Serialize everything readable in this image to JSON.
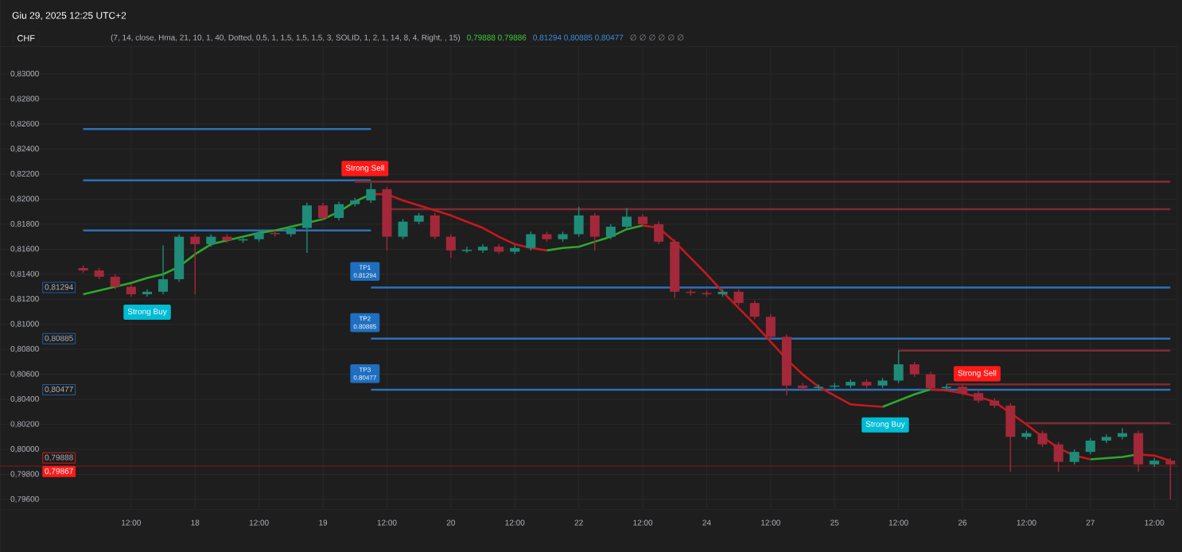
{
  "chart_data": {
    "type": "candlestick",
    "title": "Giu 29, 2025 12:25 UTC+2",
    "subtitle": "(7, 14, close, Hma, 21, 10, 1, 40, Dotted, 0,5, 1, 1,5, 1,5, 1,5, 3, SOLID, 1, 2, 1, 14, 8, 4, Right, , 15)",
    "categories": [
      null,
      null,
      null,
      "12:00",
      null,
      null,
      null,
      "18",
      null,
      null,
      null,
      "12:00",
      null,
      null,
      null,
      "19",
      null,
      null,
      null,
      "12:00",
      null,
      null,
      null,
      "20",
      null,
      null,
      null,
      "12:00",
      null,
      null,
      null,
      "22",
      null,
      null,
      null,
      "12:00",
      null,
      null,
      null,
      "24",
      null,
      null,
      null,
      "12:00",
      null,
      null,
      null,
      "25",
      null,
      null,
      null,
      "12:00",
      null,
      null,
      null,
      "26",
      null,
      null,
      null,
      "12:00",
      null,
      null,
      null,
      "27",
      null,
      null,
      null,
      "12:00",
      null
    ],
    "ohlc": [
      [
        0.8145,
        0.8147,
        0.8141,
        0.8143
      ],
      [
        0.8143,
        0.8145,
        0.8136,
        0.8138
      ],
      [
        0.8138,
        0.814,
        0.8128,
        0.813
      ],
      [
        0.813,
        0.8132,
        0.8122,
        0.8124
      ],
      [
        0.8124,
        0.8128,
        0.8122,
        0.8126
      ],
      [
        0.8126,
        0.8163,
        0.8124,
        0.8136
      ],
      [
        0.8136,
        0.8172,
        0.8134,
        0.817
      ],
      [
        0.817,
        0.8172,
        0.8124,
        0.8164
      ],
      [
        0.8164,
        0.8172,
        0.8162,
        0.817
      ],
      [
        0.817,
        0.8172,
        0.8165,
        0.8167
      ],
      [
        0.8167,
        0.817,
        0.8165,
        0.8168
      ],
      [
        0.8168,
        0.8175,
        0.8166,
        0.8173
      ],
      [
        0.8173,
        0.8175,
        0.817,
        0.8172
      ],
      [
        0.8172,
        0.8179,
        0.817,
        0.8177
      ],
      [
        0.8177,
        0.8197,
        0.8157,
        0.8195
      ],
      [
        0.8195,
        0.8197,
        0.8183,
        0.8185
      ],
      [
        0.8185,
        0.8198,
        0.8183,
        0.8196
      ],
      [
        0.8196,
        0.8201,
        0.8194,
        0.8199
      ],
      [
        0.8199,
        0.8213,
        0.8197,
        0.8208
      ],
      [
        0.8208,
        0.821,
        0.8159,
        0.817
      ],
      [
        0.817,
        0.8184,
        0.8168,
        0.8182
      ],
      [
        0.8182,
        0.8189,
        0.818,
        0.8187
      ],
      [
        0.8187,
        0.8189,
        0.8168,
        0.817
      ],
      [
        0.817,
        0.8172,
        0.8153,
        0.8159
      ],
      [
        0.8159,
        0.8162,
        0.8157,
        0.8159
      ],
      [
        0.8159,
        0.8164,
        0.8157,
        0.8162
      ],
      [
        0.8162,
        0.8164,
        0.8156,
        0.8158
      ],
      [
        0.8158,
        0.8163,
        0.8156,
        0.8161
      ],
      [
        0.8161,
        0.8174,
        0.8159,
        0.8172
      ],
      [
        0.8172,
        0.8174,
        0.8166,
        0.8168
      ],
      [
        0.8168,
        0.8174,
        0.8166,
        0.8172
      ],
      [
        0.8172,
        0.8194,
        0.817,
        0.8187
      ],
      [
        0.8187,
        0.8189,
        0.8159,
        0.817
      ],
      [
        0.817,
        0.818,
        0.8168,
        0.8178
      ],
      [
        0.8178,
        0.8193,
        0.8176,
        0.8186
      ],
      [
        0.8186,
        0.8188,
        0.8178,
        0.818
      ],
      [
        0.818,
        0.8182,
        0.8164,
        0.8166
      ],
      [
        0.8166,
        0.8168,
        0.8121,
        0.8126
      ],
      [
        0.8126,
        0.8128,
        0.8123,
        0.8125
      ],
      [
        0.8125,
        0.8127,
        0.8122,
        0.8124
      ],
      [
        0.8124,
        0.8128,
        0.8122,
        0.8126
      ],
      [
        0.8126,
        0.8128,
        0.8115,
        0.8117
      ],
      [
        0.8117,
        0.8119,
        0.8104,
        0.8106
      ],
      [
        0.8106,
        0.8108,
        0.8088,
        0.809
      ],
      [
        0.809,
        0.8092,
        0.8043,
        0.8051
      ],
      [
        0.8051,
        0.8053,
        0.8047,
        0.8049
      ],
      [
        0.8049,
        0.8052,
        0.8047,
        0.805
      ],
      [
        0.805,
        0.8053,
        0.8048,
        0.8051
      ],
      [
        0.8051,
        0.8056,
        0.8049,
        0.8054
      ],
      [
        0.8054,
        0.8056,
        0.8049,
        0.8051
      ],
      [
        0.8051,
        0.8057,
        0.8049,
        0.8055
      ],
      [
        0.8055,
        0.8079,
        0.8053,
        0.8068
      ],
      [
        0.8068,
        0.807,
        0.8058,
        0.806
      ],
      [
        0.806,
        0.8062,
        0.8047,
        0.8049
      ],
      [
        0.8049,
        0.8052,
        0.8047,
        0.805
      ],
      [
        0.805,
        0.8052,
        0.8043,
        0.8045
      ],
      [
        0.8045,
        0.8047,
        0.8037,
        0.8039
      ],
      [
        0.8039,
        0.8041,
        0.8033,
        0.8035
      ],
      [
        0.8035,
        0.8037,
        0.7982,
        0.801
      ],
      [
        0.801,
        0.8015,
        0.8008,
        0.8013
      ],
      [
        0.8013,
        0.8015,
        0.8002,
        0.8004
      ],
      [
        0.8004,
        0.8006,
        0.7982,
        0.799
      ],
      [
        0.799,
        0.8,
        0.7988,
        0.7998
      ],
      [
        0.7998,
        0.8009,
        0.7996,
        0.8007
      ],
      [
        0.8007,
        0.8012,
        0.8005,
        0.801
      ],
      [
        0.801,
        0.8017,
        0.8008,
        0.8013
      ],
      [
        0.8013,
        0.8015,
        0.7982,
        0.7988
      ],
      [
        0.7988,
        0.7993,
        0.7986,
        0.7991
      ],
      [
        0.7991,
        0.7993,
        0.796,
        0.7988
      ]
    ],
    "series": [
      {
        "type": "line",
        "color": "#2f6fb8",
        "values": [
          0.8256,
          0.8256,
          0.8256,
          0.8256,
          0.8256,
          0.8256,
          0.8256,
          0.8256,
          0.8256,
          0.8256,
          0.8256,
          0.8256,
          0.8256,
          0.8256,
          0.8256,
          0.8256,
          0.8256,
          0.8256,
          0.8256,
          null,
          null,
          null,
          null,
          null,
          null,
          null,
          null,
          null,
          null,
          null,
          null,
          null,
          null,
          null,
          null,
          null,
          null,
          null,
          null,
          null,
          null,
          null,
          null,
          null,
          null,
          null,
          null,
          null,
          null,
          null,
          null,
          null,
          null,
          null,
          null,
          null,
          null,
          null,
          null,
          null,
          null,
          null,
          null,
          null,
          null,
          null,
          null,
          null,
          null
        ]
      },
      {
        "type": "line",
        "color": "#2f6fb8",
        "values": [
          0.8215,
          0.8215,
          0.8215,
          0.8215,
          0.8215,
          0.8215,
          0.8215,
          0.8215,
          0.8215,
          0.8215,
          0.8215,
          0.8215,
          0.8215,
          0.8215,
          0.8215,
          0.8215,
          0.8215,
          0.8215,
          0.8215,
          null,
          null,
          null,
          null,
          null,
          null,
          null,
          null,
          null,
          null,
          null,
          null,
          null,
          null,
          null,
          null,
          null,
          null,
          null,
          null,
          null,
          null,
          null,
          null,
          null,
          null,
          null,
          null,
          null,
          null,
          null,
          null,
          null,
          null,
          null,
          null,
          null,
          null,
          null,
          null,
          null,
          null,
          null,
          null,
          null,
          null,
          null,
          null,
          null,
          null
        ]
      },
      {
        "type": "line",
        "color": "#2f6fb8",
        "values": [
          0.8175,
          0.8175,
          0.8175,
          0.8175,
          0.8175,
          0.8175,
          0.8175,
          0.8175,
          0.8175,
          0.8175,
          0.8175,
          0.8175,
          0.8175,
          0.8175,
          0.8175,
          0.8175,
          0.8175,
          0.8175,
          0.8175,
          null,
          null,
          null,
          null,
          null,
          null,
          null,
          null,
          null,
          null,
          null,
          null,
          null,
          null,
          null,
          null,
          null,
          null,
          null,
          null,
          null,
          null,
          null,
          null,
          null,
          null,
          null,
          null,
          null,
          null,
          null,
          null,
          null,
          null,
          null,
          null,
          null,
          null,
          null,
          null,
          null,
          null,
          null,
          null,
          null,
          null,
          null,
          null,
          null,
          null
        ]
      },
      {
        "type": "line",
        "color": "#2f6fb8",
        "values": [
          null,
          null,
          null,
          null,
          null,
          null,
          null,
          null,
          null,
          null,
          null,
          null,
          null,
          null,
          null,
          null,
          null,
          null,
          0.81294,
          0.81294,
          0.81294,
          0.81294,
          0.81294,
          0.81294,
          0.81294,
          0.81294,
          0.81294,
          0.81294,
          0.81294,
          0.81294,
          0.81294,
          0.81294,
          0.81294,
          0.81294,
          0.81294,
          0.81294,
          0.81294,
          0.81294,
          0.81294,
          0.81294,
          0.81294,
          0.81294,
          0.81294,
          0.81294,
          0.81294,
          0.81294,
          0.81294,
          0.81294,
          0.81294,
          0.81294,
          0.81294,
          0.81294,
          0.81294,
          0.81294,
          0.81294,
          0.81294,
          0.81294,
          0.81294,
          0.81294,
          0.81294,
          0.81294,
          0.81294,
          0.81294,
          0.81294,
          0.81294,
          0.81294,
          0.81294,
          0.81294,
          0.81294
        ]
      },
      {
        "type": "line",
        "color": "#2f6fb8",
        "values": [
          null,
          null,
          null,
          null,
          null,
          null,
          null,
          null,
          null,
          null,
          null,
          null,
          null,
          null,
          null,
          null,
          null,
          null,
          0.80885,
          0.80885,
          0.80885,
          0.80885,
          0.80885,
          0.80885,
          0.80885,
          0.80885,
          0.80885,
          0.80885,
          0.80885,
          0.80885,
          0.80885,
          0.80885,
          0.80885,
          0.80885,
          0.80885,
          0.80885,
          0.80885,
          0.80885,
          0.80885,
          0.80885,
          0.80885,
          0.80885,
          0.80885,
          0.80885,
          0.80885,
          0.80885,
          0.80885,
          0.80885,
          0.80885,
          0.80885,
          0.80885,
          0.80885,
          0.80885,
          0.80885,
          0.80885,
          0.80885,
          0.80885,
          0.80885,
          0.80885,
          0.80885,
          0.80885,
          0.80885,
          0.80885,
          0.80885,
          0.80885,
          0.80885,
          0.80885,
          0.80885,
          0.80885
        ]
      },
      {
        "type": "line",
        "color": "#2f6fb8",
        "values": [
          null,
          null,
          null,
          null,
          null,
          null,
          null,
          null,
          null,
          null,
          null,
          null,
          null,
          null,
          null,
          null,
          null,
          null,
          0.80477,
          0.80477,
          0.80477,
          0.80477,
          0.80477,
          0.80477,
          0.80477,
          0.80477,
          0.80477,
          0.80477,
          0.80477,
          0.80477,
          0.80477,
          0.80477,
          0.80477,
          0.80477,
          0.80477,
          0.80477,
          0.80477,
          0.80477,
          0.80477,
          0.80477,
          0.80477,
          0.80477,
          0.80477,
          0.80477,
          0.80477,
          0.80477,
          0.80477,
          0.80477,
          0.80477,
          0.80477,
          0.80477,
          0.80477,
          0.80477,
          0.80477,
          0.80477,
          0.80477,
          0.80477,
          0.80477,
          0.80477,
          0.80477,
          0.80477,
          0.80477,
          0.80477,
          0.80477,
          0.80477,
          0.80477,
          0.80477,
          0.80477,
          0.80477
        ]
      },
      {
        "type": "line",
        "color": "#7d2b33",
        "values": [
          null,
          null,
          null,
          null,
          null,
          null,
          null,
          null,
          null,
          null,
          null,
          null,
          null,
          null,
          null,
          null,
          null,
          0.8214,
          0.8214,
          0.8214,
          0.8214,
          0.8214,
          0.8214,
          0.8214,
          0.8214,
          0.8214,
          0.8214,
          0.8214,
          0.8214,
          0.8214,
          0.8214,
          0.8214,
          0.8214,
          0.8214,
          0.8214,
          0.8214,
          0.8214,
          0.8214,
          0.8214,
          0.8214,
          0.8214,
          0.8214,
          0.8214,
          0.8214,
          0.8214,
          0.8214,
          0.8214,
          0.8214,
          0.8214,
          0.8214,
          0.8214,
          0.8214,
          0.8214,
          0.8214,
          0.8214,
          0.8214,
          0.8214,
          0.8214,
          0.8214,
          0.8214,
          0.8214,
          0.8214,
          0.8214,
          0.8214,
          0.8214,
          0.8214,
          0.8214,
          0.8214,
          0.8214
        ]
      },
      {
        "type": "line",
        "color": "#7d2b33",
        "values": [
          null,
          null,
          null,
          null,
          null,
          null,
          null,
          null,
          null,
          null,
          null,
          null,
          null,
          null,
          null,
          null,
          null,
          null,
          null,
          0.8192,
          0.8192,
          0.8192,
          0.8192,
          0.8192,
          0.8192,
          0.8192,
          0.8192,
          0.8192,
          0.8192,
          0.8192,
          0.8192,
          0.8192,
          0.8192,
          0.8192,
          0.8192,
          0.8192,
          0.8192,
          0.8192,
          0.8192,
          0.8192,
          0.8192,
          0.8192,
          0.8192,
          0.8192,
          0.8192,
          0.8192,
          0.8192,
          0.8192,
          0.8192,
          0.8192,
          0.8192,
          0.8192,
          0.8192,
          0.8192,
          0.8192,
          0.8192,
          0.8192,
          0.8192,
          0.8192,
          0.8192,
          0.8192,
          0.8192,
          0.8192,
          0.8192,
          0.8192,
          0.8192,
          0.8192,
          0.8192,
          0.8192
        ]
      },
      {
        "type": "line",
        "color": "#7d2b33",
        "values": [
          null,
          null,
          null,
          null,
          null,
          null,
          null,
          null,
          null,
          null,
          null,
          null,
          null,
          null,
          null,
          null,
          null,
          null,
          null,
          null,
          null,
          null,
          null,
          null,
          null,
          null,
          null,
          null,
          null,
          null,
          null,
          null,
          null,
          null,
          null,
          null,
          null,
          null,
          null,
          null,
          null,
          null,
          null,
          null,
          null,
          null,
          null,
          null,
          null,
          null,
          null,
          0.8079,
          0.8079,
          0.8079,
          0.8079,
          0.8079,
          0.8079,
          0.8079,
          0.8079,
          0.8079,
          0.8079,
          0.8079,
          0.8079,
          0.8079,
          0.8079,
          0.8079,
          0.8079,
          0.8079,
          0.8079
        ]
      },
      {
        "type": "line",
        "color": "#7d2b33",
        "values": [
          null,
          null,
          null,
          null,
          null,
          null,
          null,
          null,
          null,
          null,
          null,
          null,
          null,
          null,
          null,
          null,
          null,
          null,
          null,
          null,
          null,
          null,
          null,
          null,
          null,
          null,
          null,
          null,
          null,
          null,
          null,
          null,
          null,
          null,
          null,
          null,
          null,
          null,
          null,
          null,
          null,
          null,
          null,
          null,
          null,
          null,
          null,
          null,
          null,
          null,
          null,
          null,
          null,
          null,
          0.8052,
          0.8052,
          0.8052,
          0.8052,
          0.8052,
          0.8052,
          0.8052,
          0.8052,
          0.8052,
          0.8052,
          0.8052,
          0.8052,
          0.8052,
          0.8052,
          0.8052
        ]
      },
      {
        "type": "line",
        "color": "#7d2b33",
        "values": [
          null,
          null,
          null,
          null,
          null,
          null,
          null,
          null,
          null,
          null,
          null,
          null,
          null,
          null,
          null,
          null,
          null,
          null,
          null,
          null,
          null,
          null,
          null,
          null,
          null,
          null,
          null,
          null,
          null,
          null,
          null,
          null,
          null,
          null,
          null,
          null,
          null,
          null,
          null,
          null,
          null,
          null,
          null,
          null,
          null,
          null,
          null,
          null,
          null,
          null,
          null,
          null,
          null,
          null,
          null,
          null,
          null,
          null,
          null,
          0.8021,
          0.8021,
          0.8021,
          0.8021,
          0.8021,
          0.8021,
          0.8021,
          0.8021,
          0.8021,
          0.8021
        ]
      },
      {
        "type": "line",
        "color": "#2ea82e",
        "values": [
          0.8124,
          0.8127,
          0.813,
          0.8133,
          0.8137,
          0.814,
          0.8146,
          0.8156,
          0.8164,
          0.8167,
          0.817,
          0.8173,
          0.8175,
          0.8178,
          0.8181,
          0.8184,
          0.819,
          0.8198,
          0.8204,
          null,
          null,
          null,
          null,
          null,
          null,
          null,
          null,
          null,
          null,
          0.8159,
          0.8161,
          0.8162,
          0.8166,
          0.817,
          0.8176,
          0.8179,
          null,
          null,
          null,
          null,
          null,
          null,
          null,
          null,
          null,
          null,
          null,
          null,
          null,
          null,
          0.8034,
          0.8039,
          0.8044,
          0.8048,
          null,
          null,
          null,
          null,
          null,
          null,
          null,
          null,
          null,
          0.7992,
          0.7993,
          0.7994,
          0.7996,
          null,
          null
        ]
      },
      {
        "type": "line",
        "color": "#c8181e",
        "values": [
          null,
          null,
          null,
          null,
          null,
          null,
          null,
          null,
          null,
          null,
          null,
          null,
          null,
          null,
          null,
          null,
          null,
          null,
          0.8204,
          0.8204,
          0.8199,
          0.8195,
          0.8191,
          0.8187,
          0.8182,
          0.8177,
          0.817,
          0.8164,
          0.8161,
          0.8159,
          null,
          null,
          null,
          null,
          null,
          0.8179,
          0.8177,
          0.8166,
          0.8153,
          0.814,
          0.8126,
          0.8113,
          0.81,
          0.8086,
          0.8072,
          0.806,
          0.805,
          0.8043,
          0.8036,
          0.8035,
          0.8034,
          null,
          null,
          0.8048,
          0.8047,
          0.8045,
          0.8042,
          0.8038,
          0.8029,
          0.802,
          0.801,
          0.8001,
          0.7995,
          0.7992,
          null,
          null,
          0.7996,
          0.7995,
          0.7991
        ]
      }
    ],
    "ref_lines": [
      {
        "axis": "y",
        "value": 0.79867,
        "color": "#6e1a1a"
      }
    ],
    "annotations": [
      "CHF",
      {
        "text": "Strong Buy",
        "y": 0.8121
      },
      {
        "text": "Strong Sell",
        "y": 0.8213
      },
      "TP1",
      {
        "text": "0.81294",
        "y": 0.81294
      },
      "TP2",
      {
        "text": "0.80885",
        "y": 0.80885
      },
      "TP3",
      {
        "text": "0.80477",
        "y": 0.80477
      },
      {
        "text": "Strong Buy",
        "y": 0.8031
      },
      {
        "text": "Strong Sell",
        "y": 0.8049
      },
      {
        "text": "0,81294",
        "y": 0.81294
      },
      {
        "text": "0,80885",
        "y": 0.80885
      },
      {
        "text": "0,80477",
        "y": 0.80477
      },
      {
        "text": "0,79888",
        "y": 0.79888
      },
      {
        "text": "0,79867",
        "y": 0.79867
      },
      "0,79888  0,79886",
      "0,81294  0,80885  0,80477",
      "∅  ∅  ∅  ∅  ∅  ∅"
    ],
    "ylim": [
      0.7952,
      0.8322
    ],
    "yticks": [
      {
        "value": 0.796,
        "label": "0,79600"
      },
      {
        "value": 0.798,
        "label": "0,79800"
      },
      {
        "value": 0.8,
        "label": "0,80000"
      },
      {
        "value": 0.802,
        "label": "0,80200"
      },
      {
        "value": 0.804,
        "label": "0,80400"
      },
      {
        "value": 0.806,
        "label": "0,80600"
      },
      {
        "value": 0.808,
        "label": "0,80800"
      },
      {
        "value": 0.81,
        "label": "0,81000"
      },
      {
        "value": 0.812,
        "label": "0,81200"
      },
      {
        "value": 0.814,
        "label": "0,81400"
      },
      {
        "value": 0.816,
        "label": "0,81600"
      },
      {
        "value": 0.818,
        "label": "0,81800"
      },
      {
        "value": 0.82,
        "label": "0,82000"
      },
      {
        "value": 0.822,
        "label": "0,82200"
      },
      {
        "value": 0.824,
        "label": "0,82400"
      },
      {
        "value": 0.826,
        "label": "0,82600"
      },
      {
        "value": 0.828,
        "label": "0,82800"
      },
      {
        "value": 0.83,
        "label": "0,83000"
      }
    ],
    "grid": true
  }
}
